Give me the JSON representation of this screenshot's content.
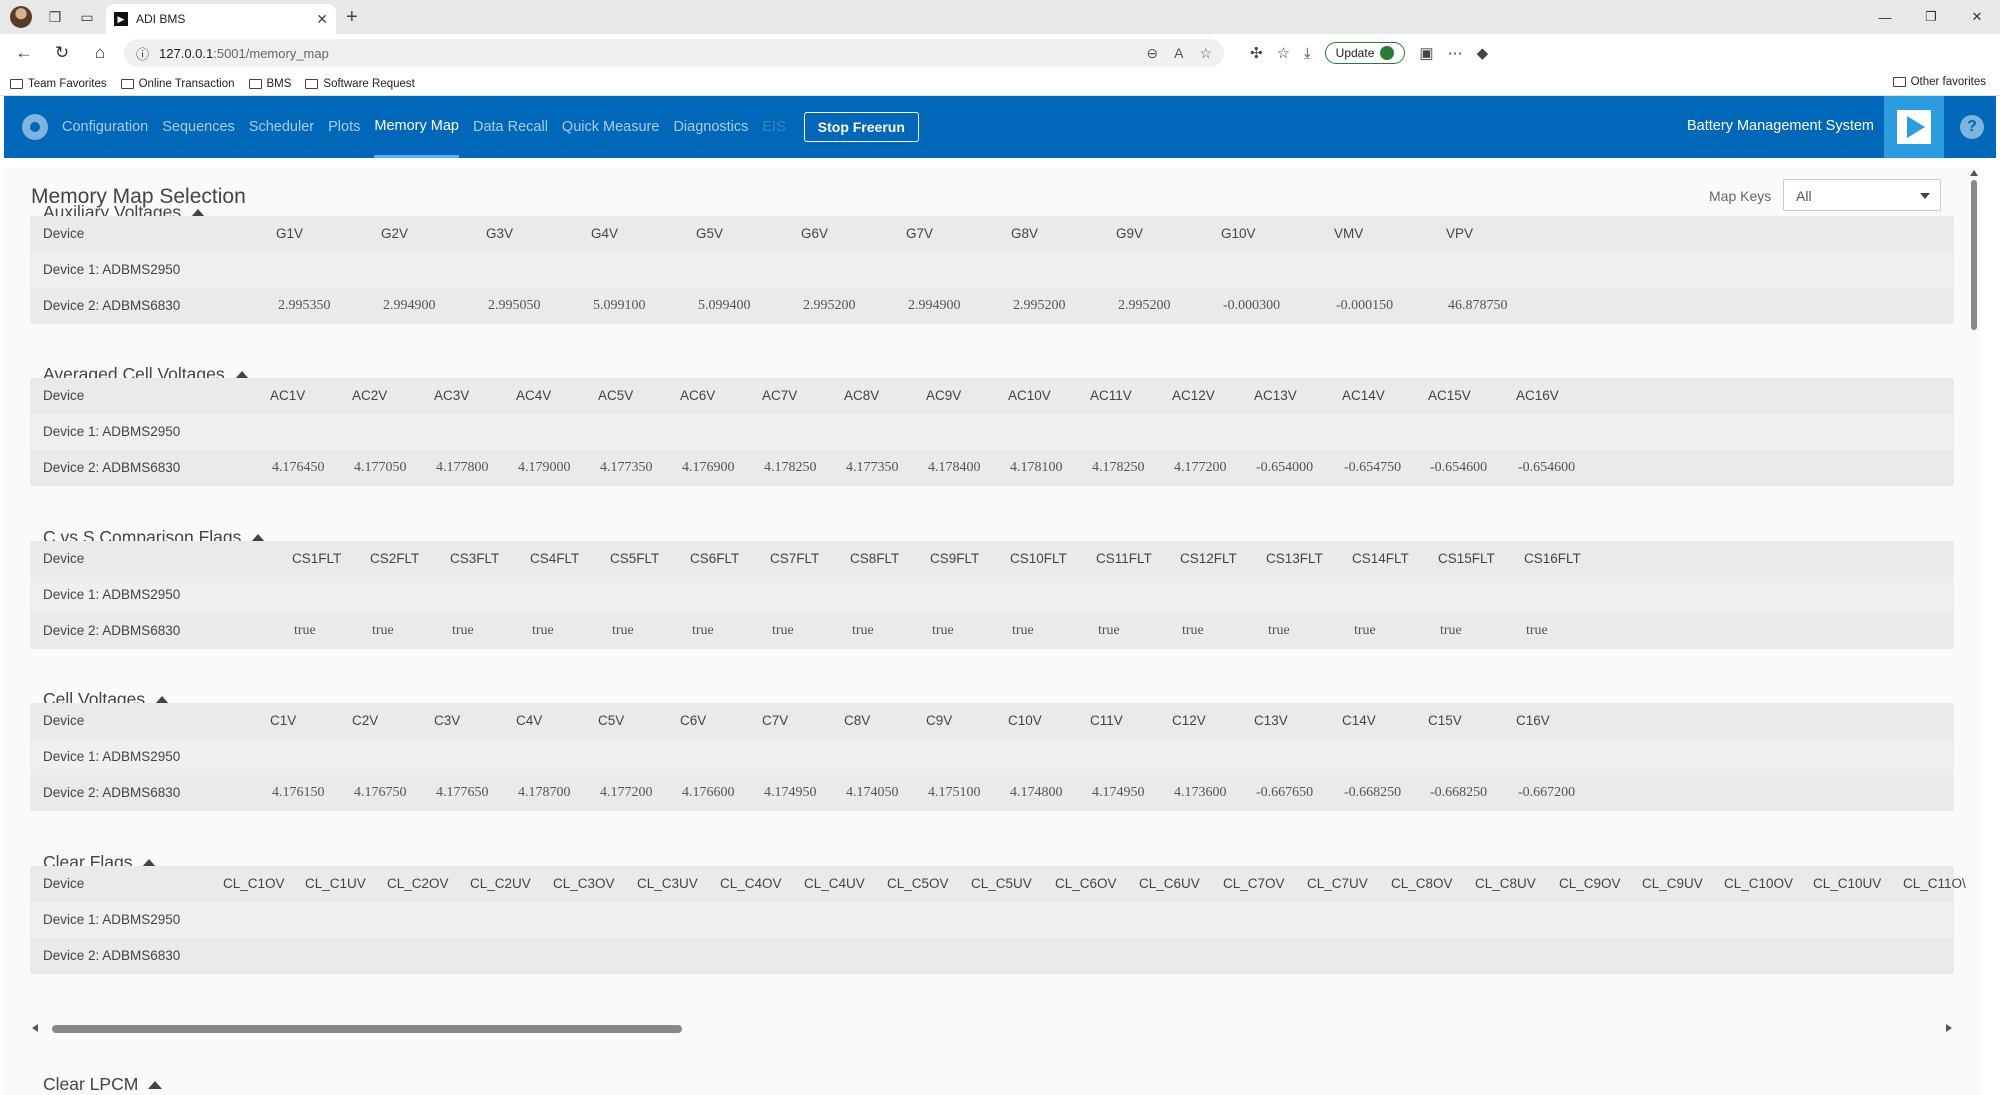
{
  "browser": {
    "tab_title": "ADI BMS",
    "url_host": "127.0.0.1",
    "url_path": ":5001/memory_map",
    "update_label": "Update",
    "bookmarks": [
      "Team Favorites",
      "Online Transaction",
      "BMS",
      "Software Request"
    ],
    "other_favorites": "Other favorites"
  },
  "nav": {
    "items": [
      "Configuration",
      "Sequences",
      "Scheduler",
      "Plots",
      "Memory Map",
      "Data Recall",
      "Quick Measure",
      "Diagnostics",
      "EIS"
    ],
    "active": "Memory Map",
    "stop_button": "Stop Freerun",
    "app_title": "Battery Management System"
  },
  "page": {
    "title": "Memory Map Selection",
    "map_keys_label": "Map Keys",
    "map_keys_value": "All"
  },
  "sections": {
    "aux": {
      "title": "Auxiliary Voltages",
      "device_header": "Device",
      "columns": [
        "G1V",
        "G2V",
        "G3V",
        "G4V",
        "G5V",
        "G6V",
        "G7V",
        "G8V",
        "G9V",
        "G10V",
        "VMV",
        "VPV"
      ],
      "rows": [
        {
          "device": "Device 1: ADBMS2950",
          "values": []
        },
        {
          "device": "Device 2: ADBMS6830",
          "values": [
            "2.995350",
            "2.994900",
            "2.995050",
            "5.099100",
            "5.099400",
            "2.995200",
            "2.994900",
            "2.995200",
            "2.995200",
            "-0.000300",
            "-0.000150",
            "46.878750"
          ]
        }
      ]
    },
    "avg": {
      "title": "Averaged Cell Voltages",
      "device_header": "Device",
      "columns": [
        "AC1V",
        "AC2V",
        "AC3V",
        "AC4V",
        "AC5V",
        "AC6V",
        "AC7V",
        "AC8V",
        "AC9V",
        "AC10V",
        "AC11V",
        "AC12V",
        "AC13V",
        "AC14V",
        "AC15V",
        "AC16V"
      ],
      "rows": [
        {
          "device": "Device 1: ADBMS2950",
          "values": []
        },
        {
          "device": "Device 2: ADBMS6830",
          "values": [
            "4.176450",
            "4.177050",
            "4.177800",
            "4.179000",
            "4.177350",
            "4.176900",
            "4.178250",
            "4.177350",
            "4.178400",
            "4.178100",
            "4.178250",
            "4.177200",
            "-0.654000",
            "-0.654750",
            "-0.654600",
            "-0.654600"
          ]
        }
      ]
    },
    "cvs": {
      "title": "C vs S Comparison Flags",
      "device_header": "Device",
      "columns": [
        "CS1FLT",
        "CS2FLT",
        "CS3FLT",
        "CS4FLT",
        "CS5FLT",
        "CS6FLT",
        "CS7FLT",
        "CS8FLT",
        "CS9FLT",
        "CS10FLT",
        "CS11FLT",
        "CS12FLT",
        "CS13FLT",
        "CS14FLT",
        "CS15FLT",
        "CS16FLT"
      ],
      "rows": [
        {
          "device": "Device 1: ADBMS2950",
          "values": []
        },
        {
          "device": "Device 2: ADBMS6830",
          "values": [
            "true",
            "true",
            "true",
            "true",
            "true",
            "true",
            "true",
            "true",
            "true",
            "true",
            "true",
            "true",
            "true",
            "true",
            "true",
            "true"
          ]
        }
      ]
    },
    "cell": {
      "title": "Cell Voltages",
      "device_header": "Device",
      "columns": [
        "C1V",
        "C2V",
        "C3V",
        "C4V",
        "C5V",
        "C6V",
        "C7V",
        "C8V",
        "C9V",
        "C10V",
        "C11V",
        "C12V",
        "C13V",
        "C14V",
        "C15V",
        "C16V"
      ],
      "rows": [
        {
          "device": "Device 1: ADBMS2950",
          "values": []
        },
        {
          "device": "Device 2: ADBMS6830",
          "values": [
            "4.176150",
            "4.176750",
            "4.177650",
            "4.178700",
            "4.177200",
            "4.176600",
            "4.174950",
            "4.174050",
            "4.175100",
            "4.174800",
            "4.174950",
            "4.173600",
            "-0.667650",
            "-0.668250",
            "-0.668250",
            "-0.667200"
          ]
        }
      ]
    },
    "clear": {
      "title": "Clear Flags",
      "device_header": "Device",
      "columns": [
        "CL_C1OV",
        "CL_C1UV",
        "CL_C2OV",
        "CL_C2UV",
        "CL_C3OV",
        "CL_C3UV",
        "CL_C4OV",
        "CL_C4UV",
        "CL_C5OV",
        "CL_C5UV",
        "CL_C6OV",
        "CL_C6UV",
        "CL_C7OV",
        "CL_C7UV",
        "CL_C8OV",
        "CL_C8UV",
        "CL_C9OV",
        "CL_C9UV",
        "CL_C10OV",
        "CL_C10UV",
        "CL_C11O\\"
      ],
      "rows": [
        {
          "device": "Device 1: ADBMS2950",
          "values": []
        },
        {
          "device": "Device 2: ADBMS6830",
          "values": []
        }
      ]
    },
    "lpcm": {
      "title": "Clear LPCM"
    }
  },
  "icons": {
    "settings": "gear-icon",
    "help": "help-icon",
    "logo": "adi-play-logo"
  },
  "colors": {
    "header_bg": "#0067b9",
    "nav_active": "#ffffff",
    "logo_bg": "#2c9cdf"
  }
}
